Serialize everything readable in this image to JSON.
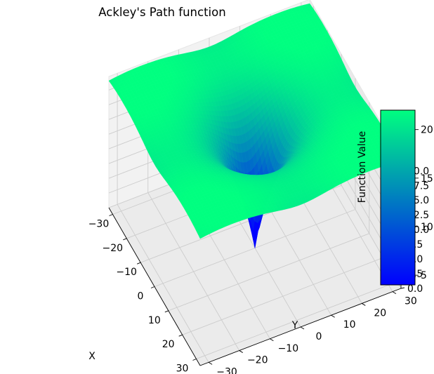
{
  "chart_data": {
    "type": "surface",
    "title": "Ackley's Path function",
    "xlabel": "X",
    "ylabel": "Y",
    "zlabel": "Function Value",
    "function": "ackley",
    "x_range": [
      -32.768,
      32.768
    ],
    "y_range": [
      -32.768,
      32.768
    ],
    "z_range": [
      0,
      22.3
    ],
    "x_ticks": [
      "−30",
      "−20",
      "−10",
      "0",
      "10",
      "20",
      "30"
    ],
    "y_ticks": [
      "−30",
      "−20",
      "−10",
      "0",
      "10",
      "20",
      "30"
    ],
    "z_ticks": [
      "0.0",
      "2.5",
      "5.0",
      "7.5",
      "10.0",
      "12.5",
      "15.0",
      "17.5",
      "20.0"
    ],
    "x_tick_values": [
      -30,
      -20,
      -10,
      0,
      10,
      20,
      30
    ],
    "y_tick_values": [
      -30,
      -20,
      -10,
      0,
      10,
      20,
      30
    ],
    "z_tick_values": [
      0,
      2.5,
      5,
      7.5,
      10,
      12.5,
      15,
      17.5,
      20
    ],
    "colormap": "winter",
    "colormap_colors": [
      "#0000ff",
      "#00ff80"
    ],
    "colorbar": {
      "range": [
        4,
        22
      ],
      "ticks": [
        "5",
        "10",
        "15",
        "20"
      ],
      "tick_values": [
        5,
        10,
        15,
        20
      ]
    },
    "grid": true
  }
}
